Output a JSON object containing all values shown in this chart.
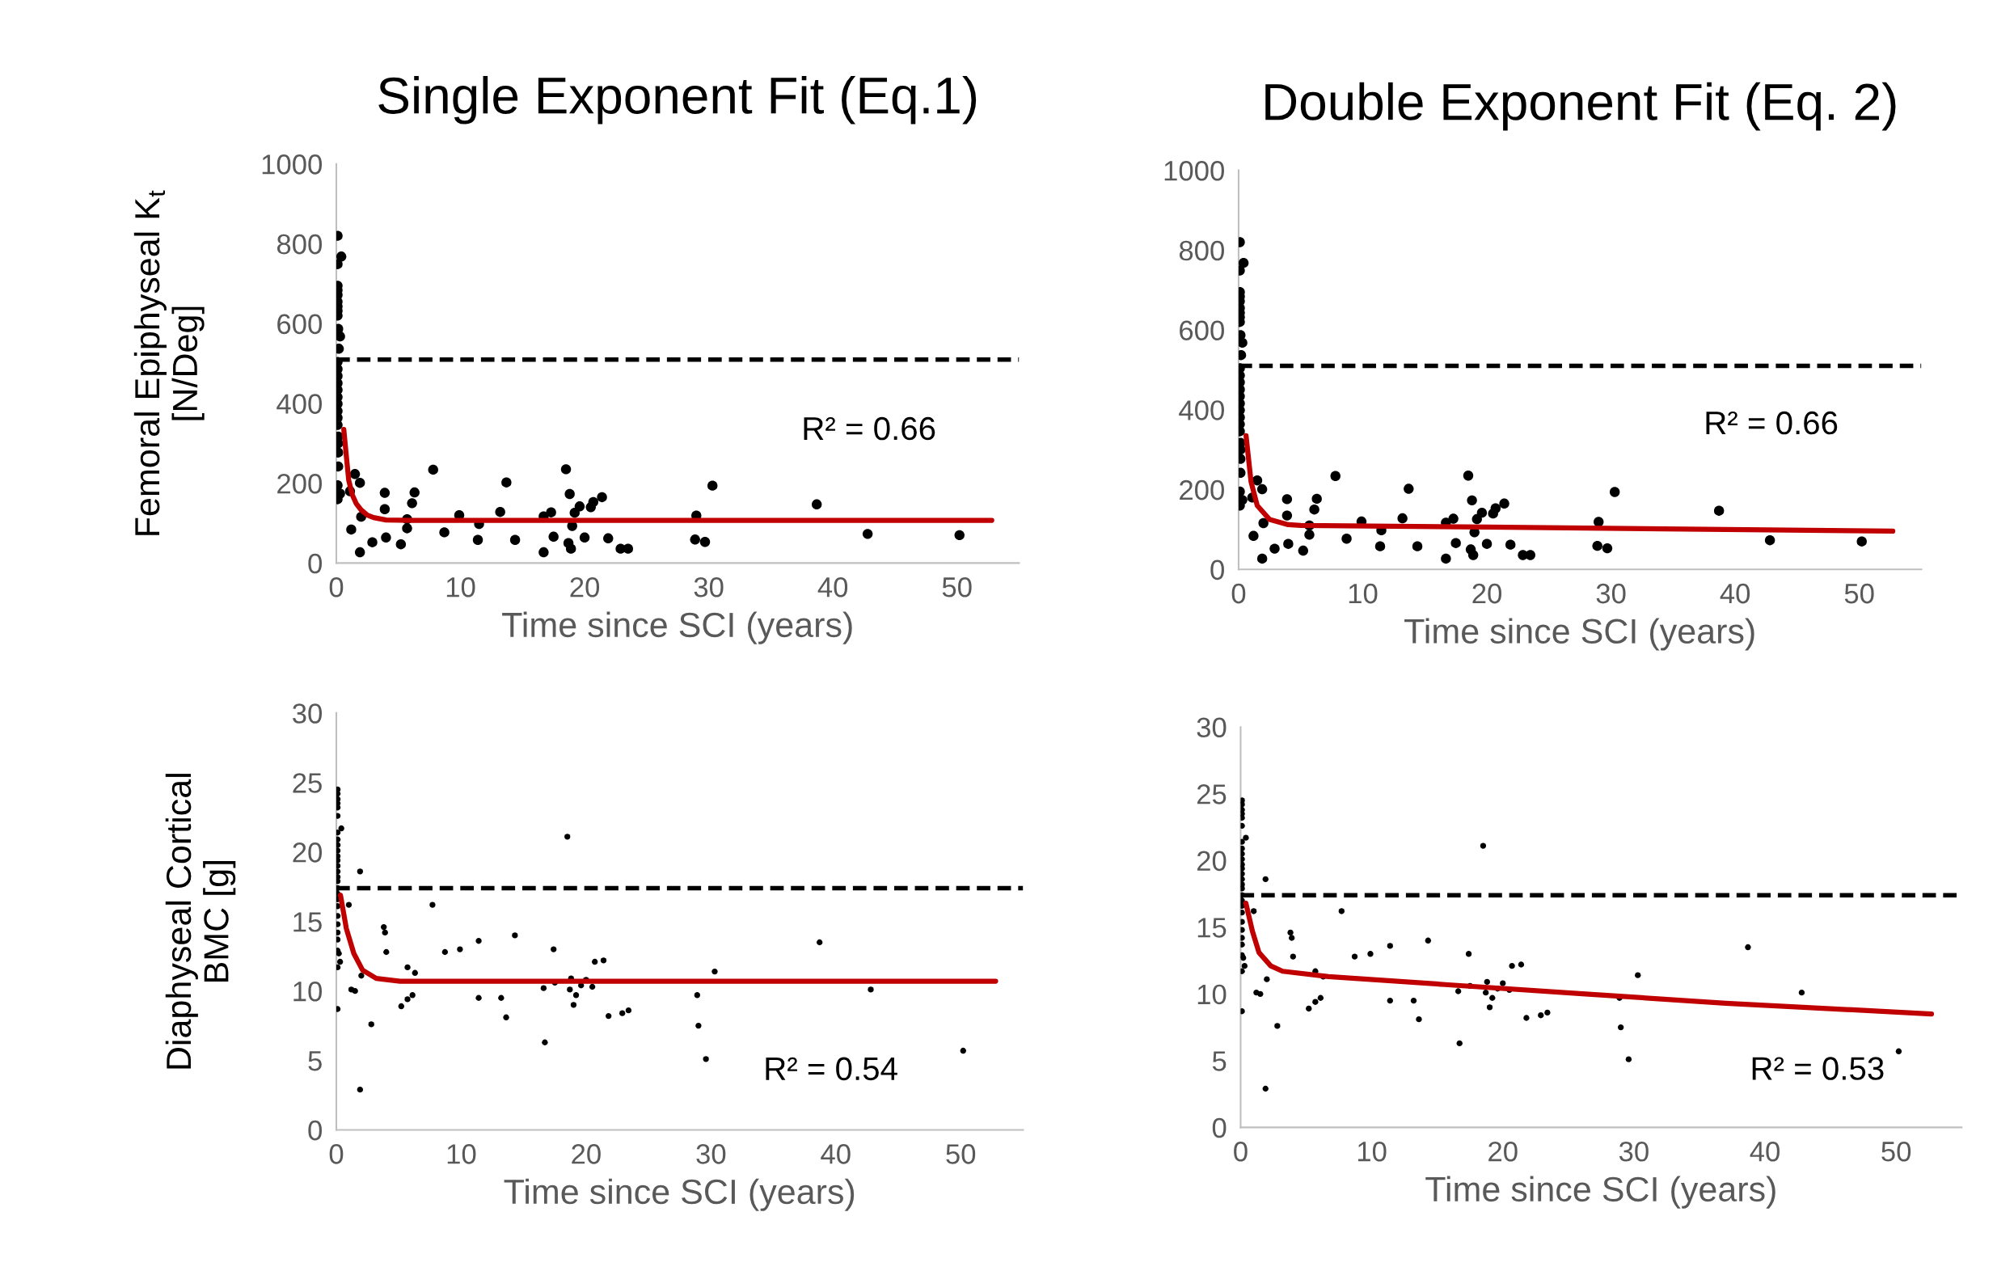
{
  "chart_data": [
    {
      "type": "scatter",
      "title": "Single Exponent Fit (Eq.1)",
      "xlabel": "Time since SCI (years)",
      "ylabel": "Femoral Epiphyseal K$_{t}$\n[N/Deg]",
      "xlim": [
        0,
        55
      ],
      "xticks": [
        0,
        10,
        20,
        30,
        40,
        50
      ],
      "ylim": [
        0,
        1000
      ],
      "yticks": [
        0,
        200,
        400,
        600,
        800,
        1000
      ],
      "grid": false,
      "marker": "circle",
      "series": [
        {
          "type": "scatter",
          "color": "#000000",
          "x": [
            0.1,
            0.4,
            0.1,
            0.1,
            0.1,
            0.1,
            0.1,
            0.1,
            0.1,
            0.1,
            0.15,
            0.3,
            0.2,
            0.1,
            0.1,
            0.1,
            0.1,
            0.1,
            0.1,
            0.1,
            0.1,
            0.1,
            0.1,
            0.15,
            0.15,
            0.15,
            0.15,
            0.1,
            0.3,
            0.1,
            1.1,
            1.5,
            1.9,
            2.0,
            1.2,
            1.9,
            2.9,
            3.9,
            3.9,
            4.0,
            5.2,
            5.7,
            5.7,
            6.1,
            6.3,
            7.8,
            8.7,
            9.9,
            11.5,
            11.4,
            13.2,
            13.7,
            14.4,
            16.7,
            16.7,
            17.3,
            17.5,
            18.5,
            18.8,
            18.7,
            18.9,
            19.0,
            19.2,
            19.6,
            20.0,
            20.5,
            20.7,
            21.4,
            21.9,
            22.9,
            23.5,
            29.0,
            28.9,
            29.7,
            30.3,
            38.7,
            42.8,
            50.2
          ],
          "values": [
            820,
            768,
            749,
            695,
            684,
            672,
            655,
            643,
            632,
            620,
            587,
            568,
            537,
            504,
            486,
            469,
            451,
            434,
            416,
            399,
            381,
            364,
            346,
            317,
            300,
            277,
            242,
            195,
            174,
            160,
            180,
            223,
            201,
            116,
            84,
            27,
            52,
            176,
            135,
            64,
            47,
            110,
            87,
            150,
            177,
            234,
            77,
            120,
            98,
            58,
            128,
            202,
            58,
            117,
            27,
            127,
            66,
            235,
            173,
            50,
            36,
            93,
            126,
            142,
            64,
            140,
            153,
            165,
            62,
            36,
            36,
            119,
            59,
            53,
            194,
            147,
            73,
            70
          ]
        },
        {
          "type": "line",
          "marker": "none",
          "color": "#c00000",
          "x": [
            0.6,
            0.8,
            1.0,
            1.3,
            1.6,
            2.0,
            2.5,
            3.0,
            4.0,
            6.0,
            52.8
          ],
          "values": [
            335,
            270,
            207,
            170,
            149,
            133,
            120,
            114,
            108,
            107,
            107
          ]
        }
      ],
      "ref_lines": [
        {
          "axis": "y",
          "value": 510,
          "color": "#000000",
          "line_style": "dashed"
        }
      ],
      "annotations": [
        "R² = 0.66"
      ]
    },
    {
      "type": "scatter",
      "title": "Double Exponent Fit (Eq. 2)",
      "xlabel": "Time since SCI (years)",
      "xlim": [
        0,
        55
      ],
      "xticks": [
        0,
        10,
        20,
        30,
        40,
        50
      ],
      "ylim": [
        0,
        1000
      ],
      "yticks": [
        0,
        200,
        400,
        600,
        800,
        1000
      ],
      "grid": false,
      "marker": "circle",
      "series": [
        {
          "type": "scatter",
          "color": "#000000",
          "x": [
            0.1,
            0.4,
            0.1,
            0.1,
            0.1,
            0.1,
            0.1,
            0.1,
            0.1,
            0.1,
            0.15,
            0.3,
            0.2,
            0.1,
            0.1,
            0.1,
            0.1,
            0.1,
            0.1,
            0.1,
            0.1,
            0.1,
            0.1,
            0.15,
            0.15,
            0.15,
            0.15,
            0.1,
            0.3,
            0.1,
            1.1,
            1.5,
            1.9,
            2.0,
            1.2,
            1.9,
            2.9,
            3.9,
            3.9,
            4.0,
            5.2,
            5.7,
            5.7,
            6.1,
            6.3,
            7.8,
            8.7,
            9.9,
            11.5,
            11.4,
            13.2,
            13.7,
            14.4,
            16.7,
            16.7,
            17.3,
            17.5,
            18.5,
            18.8,
            18.7,
            18.9,
            19.0,
            19.2,
            19.6,
            20.0,
            20.5,
            20.7,
            21.4,
            21.9,
            22.9,
            23.5,
            29.0,
            28.9,
            29.7,
            30.3,
            38.7,
            42.8,
            50.2
          ],
          "values": [
            820,
            768,
            749,
            695,
            684,
            672,
            655,
            643,
            632,
            620,
            587,
            568,
            537,
            504,
            486,
            469,
            451,
            434,
            416,
            399,
            381,
            364,
            346,
            317,
            300,
            277,
            242,
            195,
            174,
            160,
            180,
            223,
            201,
            116,
            84,
            27,
            52,
            176,
            135,
            64,
            47,
            110,
            87,
            150,
            177,
            234,
            77,
            120,
            98,
            58,
            128,
            202,
            58,
            117,
            27,
            127,
            66,
            235,
            173,
            50,
            36,
            93,
            126,
            142,
            64,
            140,
            153,
            165,
            62,
            36,
            36,
            119,
            59,
            53,
            194,
            147,
            73,
            70
          ]
        },
        {
          "type": "line",
          "marker": "none",
          "color": "#c00000",
          "x": [
            0.6,
            1.0,
            1.5,
            2.5,
            4.0,
            5.0,
            20.0,
            52.7
          ],
          "values": [
            335,
            220,
            160,
            125,
            112,
            110,
            106,
            96
          ]
        }
      ],
      "ref_lines": [
        {
          "axis": "y",
          "value": 510,
          "color": "#000000",
          "line_style": "dashed"
        }
      ],
      "annotations": [
        "R² = 0.66"
      ]
    },
    {
      "type": "scatter",
      "xlabel": "Time since SCI (years)",
      "ylabel": "Diaphyseal Cortical\nBMC [g]",
      "xlim": [
        0,
        55
      ],
      "xticks": [
        0,
        10,
        20,
        30,
        40,
        50
      ],
      "ylim": [
        0,
        30
      ],
      "yticks": [
        0,
        5,
        10,
        15,
        20,
        25,
        30
      ],
      "grid": false,
      "marker": "circle",
      "series": [
        {
          "type": "scatter",
          "color": "#000000",
          "x": [
            0.1,
            0.1,
            0.1,
            0.1,
            0.1,
            0.1,
            0.4,
            0.1,
            0.1,
            0.1,
            0.1,
            0.1,
            0.1,
            0.1,
            0.1,
            0.1,
            0.1,
            0.1,
            0.1,
            0.1,
            0.1,
            0.1,
            0.1,
            0.1,
            0.1,
            0.1,
            0.2,
            0.3,
            0.1,
            0.1,
            1.0,
            1.9,
            2.0,
            1.2,
            1.5,
            1.9,
            2.8,
            3.8,
            3.9,
            4.0,
            5.2,
            5.7,
            6.1,
            5.7,
            6.3,
            7.7,
            8.7,
            9.9,
            11.4,
            11.4,
            13.2,
            13.6,
            14.3,
            16.6,
            16.7,
            17.4,
            17.5,
            18.5,
            18.7,
            18.8,
            19.0,
            19.2,
            19.6,
            20.0,
            20.5,
            20.7,
            21.4,
            21.8,
            22.9,
            23.4,
            28.9,
            29.0,
            29.6,
            30.3,
            38.7,
            42.8,
            50.2
          ],
          "values": [
            24.5,
            24.2,
            23.8,
            23.5,
            23.2,
            22.6,
            21.7,
            21.4,
            20.9,
            20.5,
            20.1,
            19.7,
            19.4,
            19.0,
            18.6,
            18.2,
            17.9,
            17.4,
            17.0,
            16.6,
            16.1,
            15.4,
            14.8,
            14.2,
            13.7,
            12.9,
            12.7,
            12.1,
            11.7,
            8.7,
            16.2,
            18.6,
            11.1,
            10.1,
            10.0,
            2.9,
            7.6,
            14.6,
            14.2,
            12.8,
            8.9,
            9.4,
            9.7,
            11.7,
            11.3,
            16.2,
            12.8,
            13.0,
            13.6,
            9.5,
            9.5,
            8.1,
            14.0,
            10.2,
            6.3,
            13.0,
            10.6,
            21.1,
            10.1,
            10.9,
            9.0,
            9.7,
            10.4,
            10.8,
            10.3,
            12.1,
            12.2,
            8.2,
            8.4,
            8.6,
            9.7,
            7.5,
            5.1,
            11.4,
            13.5,
            10.1,
            5.7
          ]
        },
        {
          "type": "line",
          "marker": "none",
          "color": "#c00000",
          "x": [
            0.33,
            0.8,
            1.4,
            2.1,
            3.2,
            5.1,
            52.8
          ],
          "values": [
            16.9,
            14.5,
            12.7,
            11.5,
            10.9,
            10.7,
            10.7
          ]
        }
      ],
      "ref_lines": [
        {
          "axis": "y",
          "value": 17.4,
          "color": "#000000",
          "line_style": "dashed"
        }
      ],
      "annotations": [
        "R² = 0.54"
      ]
    },
    {
      "type": "scatter",
      "xlabel": "Time since SCI (years)",
      "xlim": [
        0,
        55
      ],
      "xticks": [
        0,
        10,
        20,
        30,
        40,
        50
      ],
      "ylim": [
        0,
        30
      ],
      "yticks": [
        0,
        5,
        10,
        15,
        20,
        25,
        30
      ],
      "grid": false,
      "marker": "circle",
      "series": [
        {
          "type": "scatter",
          "color": "#000000",
          "x": [
            0.1,
            0.1,
            0.1,
            0.1,
            0.1,
            0.1,
            0.4,
            0.1,
            0.1,
            0.1,
            0.1,
            0.1,
            0.1,
            0.1,
            0.1,
            0.1,
            0.1,
            0.1,
            0.1,
            0.1,
            0.1,
            0.1,
            0.1,
            0.1,
            0.1,
            0.1,
            0.2,
            0.3,
            0.1,
            0.1,
            1.0,
            1.9,
            2.0,
            1.2,
            1.5,
            1.9,
            2.8,
            3.8,
            3.9,
            4.0,
            5.2,
            5.7,
            6.1,
            5.7,
            6.3,
            7.7,
            8.7,
            9.9,
            11.4,
            11.4,
            13.2,
            13.6,
            14.3,
            16.6,
            16.7,
            17.4,
            17.5,
            18.5,
            18.7,
            18.8,
            19.0,
            19.2,
            19.6,
            20.0,
            20.5,
            20.7,
            21.4,
            21.8,
            22.9,
            23.4,
            28.9,
            29.0,
            29.6,
            30.3,
            38.7,
            42.8,
            50.2
          ],
          "values": [
            24.5,
            24.2,
            23.8,
            23.5,
            23.2,
            22.6,
            21.7,
            21.4,
            20.9,
            20.5,
            20.1,
            19.7,
            19.4,
            19.0,
            18.6,
            18.2,
            17.9,
            17.4,
            17.0,
            16.6,
            16.1,
            15.4,
            14.8,
            14.2,
            13.7,
            12.9,
            12.7,
            12.1,
            11.7,
            8.7,
            16.2,
            18.6,
            11.1,
            10.1,
            10.0,
            2.9,
            7.6,
            14.6,
            14.2,
            12.8,
            8.9,
            9.4,
            9.7,
            11.7,
            11.3,
            16.2,
            12.8,
            13.0,
            13.6,
            9.5,
            9.5,
            8.1,
            14.0,
            10.2,
            6.3,
            13.0,
            10.6,
            21.1,
            10.1,
            10.9,
            9.0,
            9.7,
            10.4,
            10.8,
            10.3,
            12.1,
            12.2,
            8.2,
            8.4,
            8.6,
            9.7,
            7.5,
            5.1,
            11.4,
            13.5,
            10.1,
            5.7
          ]
        },
        {
          "type": "line",
          "marker": "none",
          "color": "#c00000",
          "x": [
            0.4,
            0.9,
            1.4,
            2.3,
            3.2,
            6.7,
            15.6,
            26.3,
            37.0,
            52.7
          ],
          "values": [
            16.8,
            14.7,
            13.1,
            12.1,
            11.7,
            11.3,
            10.7,
            10.0,
            9.3,
            8.5
          ]
        }
      ],
      "ref_lines": [
        {
          "axis": "y",
          "value": 17.4,
          "color": "#000000",
          "line_style": "dashed"
        }
      ],
      "annotations": [
        "R² = 0.53"
      ]
    }
  ]
}
